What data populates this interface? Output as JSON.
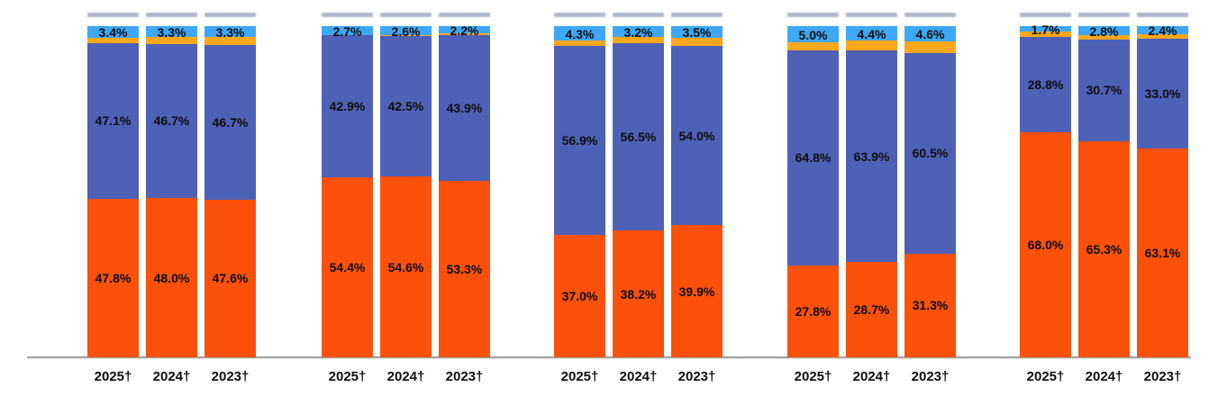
{
  "chart_data": {
    "type": "bar",
    "variant": "100-percent-stacked-columns, 5 panels x 3 bars",
    "title": "",
    "x_tick_labels": [
      "2025†",
      "2024†",
      "2023†"
    ],
    "value_label_suffix": "%",
    "legend_visible": false,
    "gridlines": false,
    "baseline_axis": true,
    "ylim": [
      0,
      100
    ],
    "segment_order_bottom_to_top": [
      "orange",
      "blue",
      "gold_unlabeled_remainder",
      "light_blue"
    ],
    "colors": {
      "segment_bottom_orange": "#fb510a",
      "segment_middle_blue": "#4e61b6",
      "segment_gold_thin": "#fca81d",
      "segment_top_light_blue": "#3ea8f6",
      "axis_line": "#a3a3a3",
      "label_text": "#0d0d0d"
    },
    "groups": [
      {
        "bars": [
          {
            "x": "2025†",
            "orange_pct": 47.8,
            "blue_pct": 47.1,
            "light_blue_pct": 3.4
          },
          {
            "x": "2024†",
            "orange_pct": 48.0,
            "blue_pct": 46.7,
            "light_blue_pct": 3.3
          },
          {
            "x": "2023†",
            "orange_pct": 47.6,
            "blue_pct": 46.7,
            "light_blue_pct": 3.3
          }
        ]
      },
      {
        "bars": [
          {
            "x": "2025†",
            "orange_pct": 54.4,
            "blue_pct": 42.9,
            "light_blue_pct": 2.7
          },
          {
            "x": "2024†",
            "orange_pct": 54.6,
            "blue_pct": 42.5,
            "light_blue_pct": 2.6
          },
          {
            "x": "2023†",
            "orange_pct": 53.3,
            "blue_pct": 43.9,
            "light_blue_pct": 2.2
          }
        ]
      },
      {
        "bars": [
          {
            "x": "2025†",
            "orange_pct": 37.0,
            "blue_pct": 56.9,
            "light_blue_pct": 4.3
          },
          {
            "x": "2024†",
            "orange_pct": 38.2,
            "blue_pct": 56.5,
            "light_blue_pct": 3.2
          },
          {
            "x": "2023†",
            "orange_pct": 39.9,
            "blue_pct": 54.0,
            "light_blue_pct": 3.5
          }
        ]
      },
      {
        "bars": [
          {
            "x": "2025†",
            "orange_pct": 27.8,
            "blue_pct": 64.8,
            "light_blue_pct": 5.0
          },
          {
            "x": "2024†",
            "orange_pct": 28.7,
            "blue_pct": 63.9,
            "light_blue_pct": 4.4
          },
          {
            "x": "2023†",
            "orange_pct": 31.3,
            "blue_pct": 60.5,
            "light_blue_pct": 4.6
          }
        ]
      },
      {
        "bars": [
          {
            "x": "2025†",
            "orange_pct": 68.0,
            "blue_pct": 28.8,
            "light_blue_pct": 1.7
          },
          {
            "x": "2024†",
            "orange_pct": 65.3,
            "blue_pct": 30.7,
            "light_blue_pct": 2.8
          },
          {
            "x": "2023†",
            "orange_pct": 63.1,
            "blue_pct": 33.0,
            "light_blue_pct": 2.4
          }
        ]
      }
    ]
  }
}
